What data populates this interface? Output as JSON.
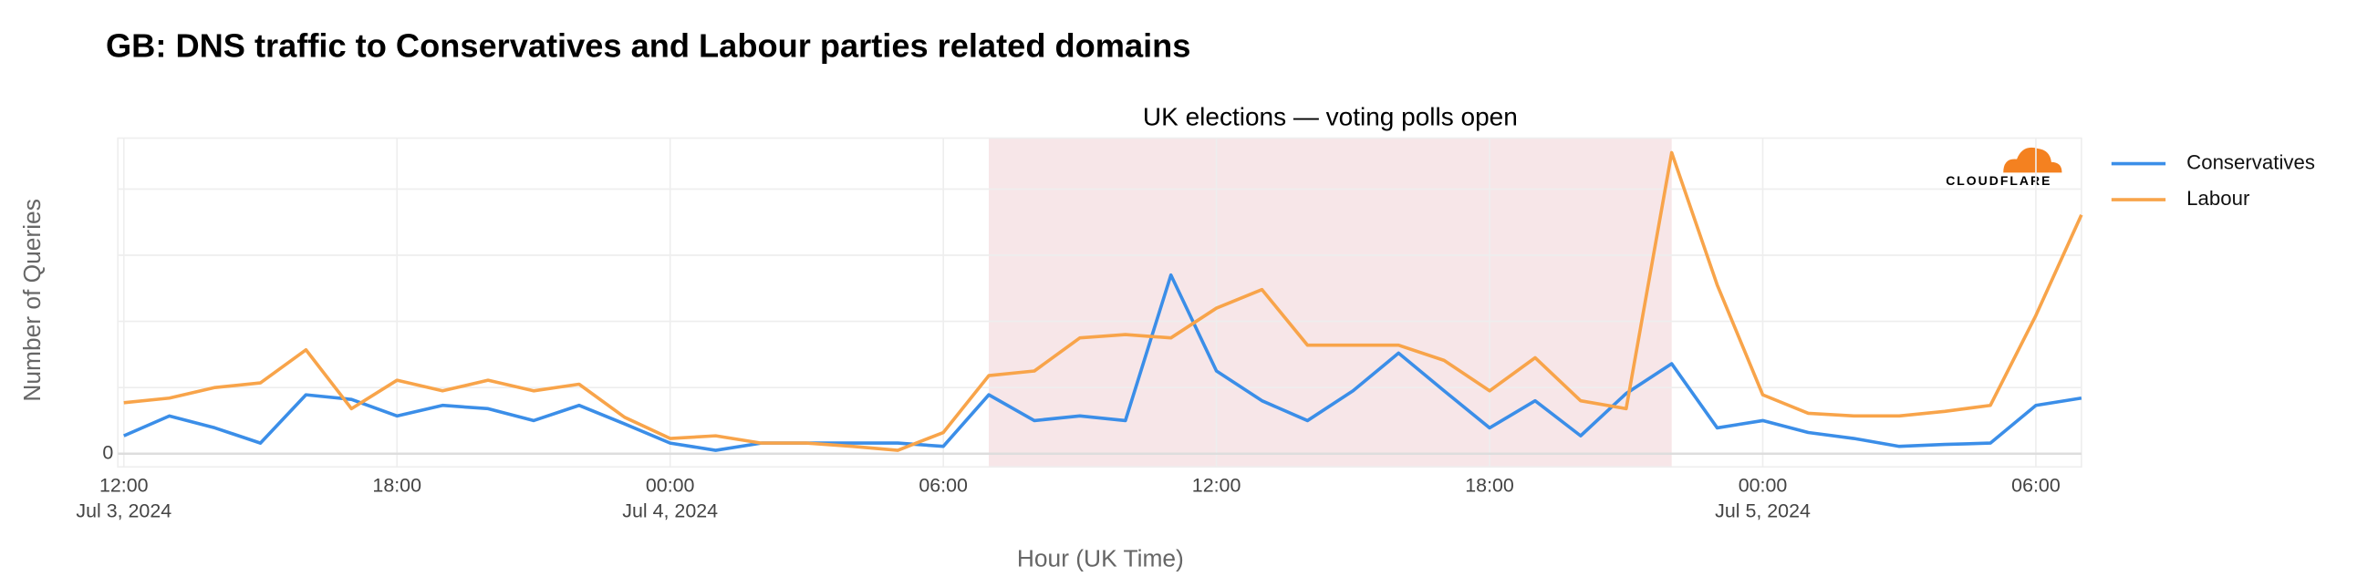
{
  "chart_data": {
    "type": "line",
    "title": "GB: DNS traffic to Conservatives and Labour parties related domains",
    "x_label": "Hour (UK Time)",
    "y_label": "Number of Queries",
    "logo": "CLOUDFLARE",
    "annotation": {
      "text": "UK elections — voting polls open",
      "x0": "2024-07-04T07:00",
      "x1": "2024-07-04T22:00",
      "color": "#f7e6e8"
    },
    "x": [
      "2024-07-03T12:00",
      "2024-07-03T13:00",
      "2024-07-03T14:00",
      "2024-07-03T15:00",
      "2024-07-03T16:00",
      "2024-07-03T17:00",
      "2024-07-03T18:00",
      "2024-07-03T19:00",
      "2024-07-03T20:00",
      "2024-07-03T21:00",
      "2024-07-03T22:00",
      "2024-07-03T23:00",
      "2024-07-04T00:00",
      "2024-07-04T01:00",
      "2024-07-04T02:00",
      "2024-07-04T03:00",
      "2024-07-04T04:00",
      "2024-07-04T05:00",
      "2024-07-04T06:00",
      "2024-07-04T07:00",
      "2024-07-04T08:00",
      "2024-07-04T09:00",
      "2024-07-04T10:00",
      "2024-07-04T11:00",
      "2024-07-04T12:00",
      "2024-07-04T13:00",
      "2024-07-04T14:00",
      "2024-07-04T15:00",
      "2024-07-04T16:00",
      "2024-07-04T17:00",
      "2024-07-04T18:00",
      "2024-07-04T19:00",
      "2024-07-04T20:00",
      "2024-07-04T21:00",
      "2024-07-04T22:00",
      "2024-07-04T23:00",
      "2024-07-05T00:00",
      "2024-07-05T01:00",
      "2024-07-05T02:00",
      "2024-07-05T03:00",
      "2024-07-05T04:00",
      "2024-07-05T05:00",
      "2024-07-05T06:00",
      "2024-07-05T07:00"
    ],
    "series": [
      {
        "name": "Conservatives",
        "color": "#3b8ee8",
        "values": [
          0.27,
          0.57,
          0.39,
          0.16,
          0.89,
          0.82,
          0.57,
          0.73,
          0.68,
          0.5,
          0.73,
          0.45,
          0.16,
          0.05,
          0.16,
          0.16,
          0.16,
          0.16,
          0.11,
          0.89,
          0.5,
          0.57,
          0.5,
          2.7,
          1.25,
          0.8,
          0.5,
          0.95,
          1.52,
          0.95,
          0.39,
          0.8,
          0.27,
          0.91,
          1.36,
          0.39,
          0.5,
          0.32,
          0.23,
          0.11,
          0.14,
          0.16,
          0.73,
          0.84
        ]
      },
      {
        "name": "Labour",
        "color": "#f8a44a",
        "values": [
          0.77,
          0.84,
          1.0,
          1.07,
          1.57,
          0.68,
          1.11,
          0.95,
          1.11,
          0.95,
          1.05,
          0.55,
          0.23,
          0.27,
          0.16,
          0.16,
          0.11,
          0.05,
          0.32,
          1.18,
          1.25,
          1.75,
          1.8,
          1.75,
          2.2,
          2.48,
          1.64,
          1.64,
          1.64,
          1.41,
          0.95,
          1.45,
          0.8,
          0.68,
          4.55,
          2.55,
          0.89,
          0.61,
          0.57,
          0.57,
          0.64,
          0.73,
          2.09,
          3.61
        ]
      }
    ],
    "xlim": [
      "2024-07-03T12:00",
      "2024-07-05T07:00"
    ],
    "xticks": [
      {
        "value": "2024-07-03T12:00",
        "label": "12:00",
        "date": "Jul 3, 2024"
      },
      {
        "value": "2024-07-03T18:00",
        "label": "18:00"
      },
      {
        "value": "2024-07-04T00:00",
        "label": "00:00",
        "date": "Jul 4, 2024"
      },
      {
        "value": "2024-07-04T06:00",
        "label": "06:00"
      },
      {
        "value": "2024-07-04T12:00",
        "label": "12:00"
      },
      {
        "value": "2024-07-04T18:00",
        "label": "18:00"
      },
      {
        "value": "2024-07-05T00:00",
        "label": "00:00",
        "date": "Jul 5, 2024"
      },
      {
        "value": "2024-07-05T06:00",
        "label": "06:00"
      }
    ],
    "ylim": [
      -0.2,
      4.77
    ],
    "yticks": [
      0
    ],
    "ygrid": [
      1,
      2,
      3,
      4
    ],
    "grid": true,
    "legend": "right"
  }
}
